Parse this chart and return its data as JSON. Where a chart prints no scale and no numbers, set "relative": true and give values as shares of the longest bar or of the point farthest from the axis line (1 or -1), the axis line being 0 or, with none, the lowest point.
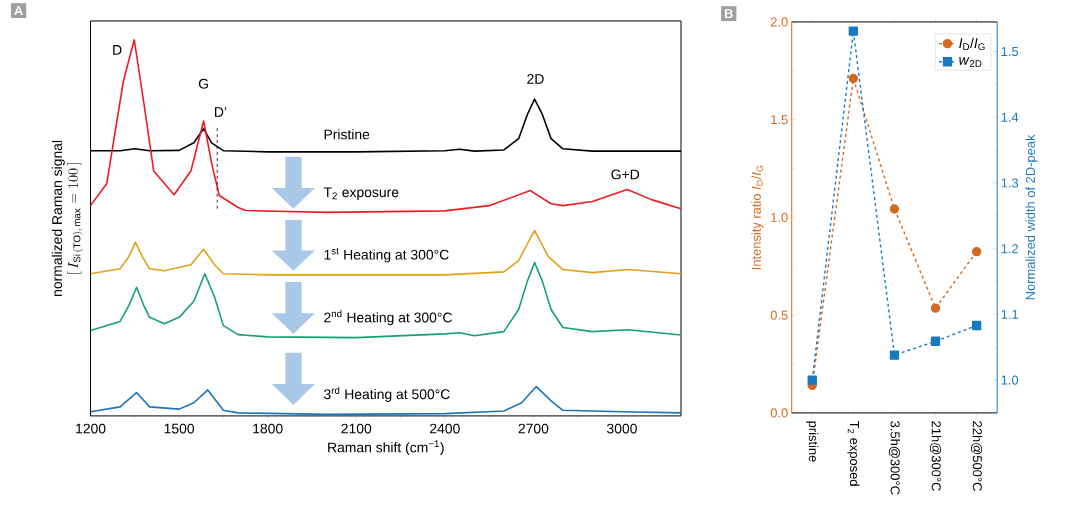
{
  "chart_data": [
    {
      "type": "line",
      "title": "A",
      "relative": true,
      "xlabel": "Raman shift  (cm$^{−1}$)",
      "ylabel": "normalized Raman signal",
      "annotations": [
        "[\\,I_{\\mathrm{Si\\,(TO),\\,max}} = 100\\,]",
        "D",
        "G",
        "D’",
        "2D",
        "G+D"
      ],
      "xlim": [
        1200,
        3200
      ],
      "xticks": [
        1200,
        1500,
        1800,
        2100,
        2400,
        2700,
        3000
      ],
      "legend": false,
      "series": [
        {
          "name": "Pristine",
          "color": "#000000",
          "x": [
            1200,
            1300,
            1350,
            1400,
            1500,
            1550,
            1583,
            1610,
            1650,
            1800,
            2100,
            2400,
            2450,
            2500,
            2600,
            2650,
            2680,
            2704,
            2730,
            2760,
            2800,
            2900,
            3200
          ],
          "values": [
            0.705,
            0.705,
            0.71,
            0.705,
            0.706,
            0.726,
            0.764,
            0.726,
            0.705,
            0.702,
            0.702,
            0.705,
            0.709,
            0.704,
            0.707,
            0.737,
            0.802,
            0.842,
            0.802,
            0.737,
            0.71,
            0.704,
            0.704
          ]
        },
        {
          "name": "T$_{2}$ exposure",
          "color": "#ee1c24",
          "x": [
            1200,
            1255,
            1311,
            1348,
            1380,
            1414,
            1483,
            1540,
            1583,
            1610,
            1636,
            1700,
            1725,
            2000,
            2400,
            2550,
            2690,
            2760,
            2800,
            2900,
            3018,
            3100,
            3200
          ],
          "values": [
            0.559,
            0.618,
            0.889,
            1.0,
            0.835,
            0.651,
            0.588,
            0.651,
            0.784,
            0.672,
            0.586,
            0.554,
            0.546,
            0.541,
            0.545,
            0.559,
            0.599,
            0.564,
            0.559,
            0.57,
            0.602,
            0.575,
            0.551
          ]
        },
        {
          "name": "1$^{st}$ Heating at 300°C",
          "color": "#e3a11a",
          "x": [
            1200,
            1300,
            1330,
            1352,
            1375,
            1400,
            1450,
            1540,
            1583,
            1620,
            1650,
            1800,
            2400,
            2600,
            2650,
            2704,
            2750,
            2800,
            2900,
            3020,
            3200
          ],
          "values": [
            0.378,
            0.391,
            0.424,
            0.462,
            0.424,
            0.391,
            0.386,
            0.402,
            0.443,
            0.402,
            0.378,
            0.375,
            0.375,
            0.383,
            0.413,
            0.493,
            0.424,
            0.389,
            0.381,
            0.389,
            0.378
          ]
        },
        {
          "name": "2$^{nd}$ Heating at 300°C",
          "color": "#16a075",
          "x": [
            1200,
            1300,
            1330,
            1356,
            1380,
            1400,
            1450,
            1500,
            1550,
            1587,
            1620,
            1650,
            1700,
            1800,
            2100,
            2400,
            2450,
            2500,
            2600,
            2650,
            2680,
            2704,
            2730,
            2760,
            2800,
            2900,
            3020,
            3200
          ],
          "values": [
            0.227,
            0.251,
            0.294,
            0.342,
            0.294,
            0.262,
            0.245,
            0.262,
            0.305,
            0.378,
            0.316,
            0.24,
            0.216,
            0.21,
            0.208,
            0.218,
            0.221,
            0.213,
            0.224,
            0.283,
            0.359,
            0.408,
            0.359,
            0.283,
            0.235,
            0.224,
            0.229,
            0.215
          ]
        },
        {
          "name": "3$^{rd}$ Heating at 500°C",
          "color": "#1b75bc",
          "x": [
            1200,
            1300,
            1356,
            1400,
            1500,
            1550,
            1597,
            1650,
            1700,
            2000,
            2400,
            2600,
            2660,
            2710,
            2760,
            2800,
            3000,
            3200
          ],
          "values": [
            0.011,
            0.024,
            0.062,
            0.024,
            0.018,
            0.035,
            0.069,
            0.015,
            0.008,
            0.004,
            0.006,
            0.013,
            0.035,
            0.078,
            0.04,
            0.015,
            0.011,
            0.008
          ]
        }
      ]
    },
    {
      "type": "line",
      "title": "B",
      "ylabel": "Intensity ratio *I*$_{D}$/*I*$_{G}$",
      "y2label": "Normalized width of 2D-peak",
      "categories": [
        "pristine",
        "T$_{2}$ exposed",
        "3.5h@300°C",
        "21h@300°C",
        "22h@500°C"
      ],
      "ylim": [
        0,
        2
      ],
      "yticks": [
        {
          "value": 0,
          "label": "0.0"
        },
        0.5,
        {
          "value": 1,
          "label": "1.0"
        },
        1.5,
        {
          "value": 2,
          "label": "2.0"
        }
      ],
      "y2lim": [
        0.95,
        1.545
      ],
      "y2ticks": [
        {
          "value": 1,
          "label": "1.0"
        },
        1.1,
        1.2,
        1.3,
        1.4,
        1.5
      ],
      "legend": "top right",
      "line_style": "dashed",
      "series": [
        {
          "name": "*I*$_{D}$/*I*$_{G}$",
          "color": "#d2691e",
          "marker": "circle",
          "values": [
            0.141,
            1.711,
            1.043,
            0.536,
            0.825
          ]
        },
        {
          "name": "*w*$_{2D}$",
          "color": "#1a7abf",
          "marker": "square",
          "axis": "y2",
          "values": [
            1.0,
            1.531,
            1.038,
            1.059,
            1.083
          ]
        }
      ]
    }
  ]
}
